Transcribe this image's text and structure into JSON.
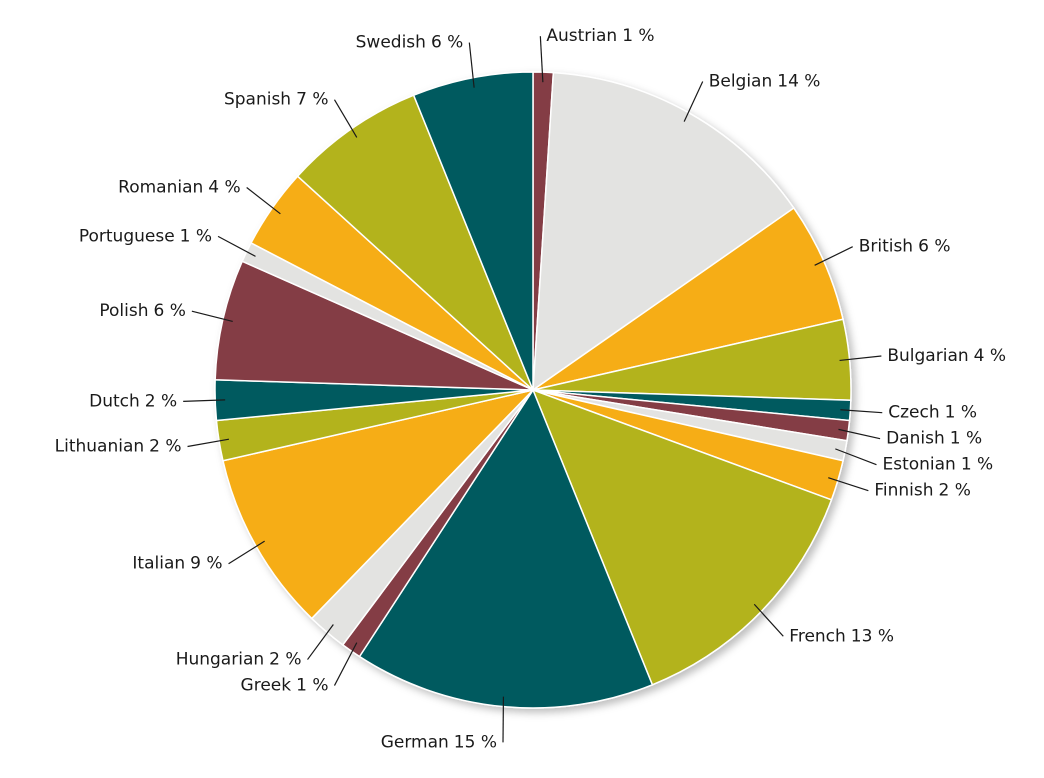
{
  "chart_data": {
    "type": "pie",
    "categories": [
      "Austrian",
      "Belgian",
      "British",
      "Bulgarian",
      "Czech",
      "Danish",
      "Estonian",
      "Finnish",
      "French",
      "German",
      "Greek",
      "Hungarian",
      "Italian",
      "Lithuanian",
      "Dutch",
      "Polish",
      "Portuguese",
      "Romanian",
      "Spanish",
      "Swedish"
    ],
    "values": [
      1,
      14,
      6,
      4,
      1,
      1,
      1,
      2,
      13,
      15,
      1,
      2,
      9,
      2,
      2,
      6,
      1,
      4,
      7,
      6
    ],
    "value_labels": [
      "1 %",
      "14 %",
      "6 %",
      "4 %",
      "1 %",
      "1 %",
      "1 %",
      "2 %",
      "13 %",
      "15 %",
      "1 %",
      "2 %",
      "9 %",
      "2 %",
      "2 %",
      "6 %",
      "1 %",
      "4 %",
      "7 %",
      "6 %"
    ],
    "colors": [
      "#843c44",
      "#e3e3e1",
      "#f6ad17",
      "#b3b31e",
      "#005a5e",
      "#843c44",
      "#e3e3e1",
      "#f6ad17",
      "#b3b31e",
      "#005a5e",
      "#843c44",
      "#e3e3e1",
      "#f6ad17",
      "#b3b31e",
      "#005a5e",
      "#843c44",
      "#e3e3e1",
      "#f6ad17",
      "#b3b31e",
      "#005a5e"
    ]
  }
}
